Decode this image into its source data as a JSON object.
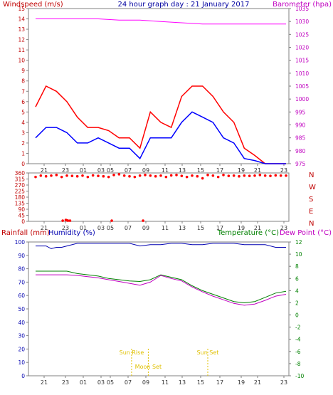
{
  "header": {
    "title": "24 hour graph day : 21 January 2017",
    "left_label": "Windspeed (m/s)",
    "right_label": "Barometer (hpa)"
  },
  "colors": {
    "frame": "#808080",
    "grid": "#e0e0e0",
    "wind": "#ff0000",
    "gust": "#0000ff",
    "baro": "#ff00ff",
    "direction": "#ff0000",
    "humidity": "#0000b0",
    "temperature": "#008000",
    "dewpoint": "#c000c0",
    "astro": "#e0c000",
    "rain_label": "#c00000",
    "humidity_label": "#0000b0",
    "temp_label": "#008000",
    "dew_label": "#c000c0"
  },
  "chart_data": [
    {
      "id": "wind_baro",
      "type": "line",
      "xlabel": "",
      "x_ticks": [
        "21",
        "23",
        "01",
        "03",
        "05",
        "07",
        "09",
        "11",
        "13",
        "15",
        "17",
        "19",
        "21",
        "23"
      ],
      "y_left": {
        "label": "Windspeed (m/s)",
        "range": [
          0,
          15
        ],
        "ticks": [
          0,
          1,
          2,
          3,
          4,
          5,
          6,
          7,
          8,
          9,
          10,
          11,
          12,
          13,
          14,
          15
        ]
      },
      "y_right": {
        "label": "Barometer (hpa)",
        "range": [
          975,
          1035
        ],
        "ticks": [
          975,
          980,
          985,
          990,
          995,
          1000,
          1005,
          1010,
          1015,
          1020,
          1025,
          1030,
          1035
        ]
      },
      "series": [
        {
          "color": "#ff0000",
          "x": [
            0,
            1,
            2,
            3,
            4,
            5,
            6,
            7,
            8,
            9,
            10,
            11,
            12,
            13,
            14,
            15,
            16,
            17,
            18,
            19,
            20,
            21,
            22,
            23,
            24
          ],
          "y": [
            5.5,
            7.5,
            7.0,
            6.0,
            4.5,
            3.5,
            3.5,
            3.2,
            2.5,
            2.5,
            1.5,
            5.0,
            4.0,
            3.5,
            6.5,
            7.5,
            7.5,
            6.5,
            5.0,
            4.0,
            1.5,
            0.8,
            0,
            0,
            0
          ]
        },
        {
          "color": "#0000ff",
          "x": [
            0,
            1,
            2,
            3,
            4,
            5,
            6,
            7,
            8,
            9,
            10,
            11,
            12,
            13,
            14,
            15,
            16,
            17,
            18,
            19,
            20,
            21,
            22,
            23,
            24
          ],
          "y": [
            2.5,
            3.5,
            3.5,
            3.0,
            2.0,
            2.0,
            2.5,
            2.0,
            1.5,
            1.5,
            0.5,
            2.5,
            2.5,
            2.5,
            4.0,
            5.0,
            4.5,
            4.0,
            2.5,
            2.0,
            0.5,
            0.3,
            0,
            0,
            0
          ]
        },
        {
          "color": "#ff00ff",
          "x": [
            0,
            2,
            4,
            6,
            8,
            10,
            12,
            14,
            16,
            18,
            20,
            22,
            24
          ],
          "y": [
            1031,
            1031,
            1031,
            1031,
            1030.5,
            1030.5,
            1030,
            1029.5,
            1029,
            1029,
            1029,
            1029,
            1029
          ]
        }
      ]
    },
    {
      "id": "wind_direction",
      "type": "scatter",
      "x_ticks": [
        "21",
        "23",
        "01",
        "03",
        "05",
        "07",
        "09",
        "11",
        "13",
        "15",
        "17",
        "19",
        "21",
        "23"
      ],
      "y_left": {
        "range": [
          0,
          360
        ],
        "ticks": [
          0,
          45,
          90,
          135,
          180,
          225,
          270,
          315,
          360
        ]
      },
      "y_right_labels": [
        "N",
        "W",
        "S",
        "E",
        "N"
      ],
      "series": [
        {
          "color": "#ff0000",
          "x": [
            0.0,
            0.5,
            1.0,
            1.5,
            2.0,
            2.5,
            3.0,
            3.5,
            4.0,
            4.5,
            5.0,
            5.5,
            6.0,
            6.5,
            7.0,
            7.5,
            8.0,
            8.5,
            9.0,
            9.5,
            10.0,
            10.5,
            11.0,
            11.5,
            12.0,
            12.5,
            13.0,
            13.5,
            14.0,
            14.5,
            15.0,
            15.5,
            16.0,
            16.5,
            17.0,
            17.5,
            18.0,
            18.5,
            19.0,
            19.5,
            20.0,
            20.5,
            21.0,
            21.5,
            22.0,
            22.5,
            23.0,
            23.5,
            24.0
          ],
          "y": [
            330,
            340,
            335,
            340,
            345,
            330,
            340,
            338,
            335,
            340,
            330,
            342,
            338,
            335,
            330,
            345,
            350,
            340,
            335,
            330,
            340,
            345,
            340,
            335,
            340,
            330,
            342,
            345,
            338,
            330,
            340,
            335,
            320,
            345,
            340,
            330,
            345,
            338,
            340,
            335,
            340,
            338,
            340,
            345,
            340,
            338,
            342,
            340,
            340
          ]
        },
        {
          "color": "#ff0000",
          "x": [
            2.6,
            2.9,
            3.0,
            3.1,
            3.3,
            7.3,
            10.3
          ],
          "y": [
            5,
            10,
            8,
            5,
            5,
            5,
            5
          ]
        }
      ]
    },
    {
      "id": "rain_humidity_temp",
      "type": "line",
      "x_ticks": [
        "21",
        "23",
        "01",
        "03",
        "05",
        "07",
        "09",
        "11",
        "13",
        "15",
        "17",
        "19",
        "21",
        "23"
      ],
      "y_left": {
        "label": "Rainfall (mm)  Humidity (%)",
        "range": [
          0,
          100
        ],
        "ticks": [
          0,
          10,
          20,
          30,
          40,
          50,
          60,
          70,
          80,
          90,
          100
        ]
      },
      "y_right": {
        "label": "Temperature (°C)",
        "range": [
          -10,
          12
        ],
        "ticks": [
          -10,
          -8,
          -6,
          -4,
          -2,
          0,
          2,
          4,
          6,
          8,
          10,
          12
        ]
      },
      "series": [
        {
          "color": "#0000b0",
          "x": [
            0,
            1,
            1.5,
            2,
            2.5,
            3,
            4,
            5,
            6,
            7,
            8,
            9,
            10,
            11,
            12,
            13,
            14,
            15,
            16,
            17,
            18,
            19,
            20,
            21,
            22,
            23,
            24
          ],
          "y": [
            97,
            97,
            95,
            96,
            96,
            97,
            99,
            99,
            99,
            99,
            99,
            99,
            97,
            98,
            98,
            99,
            99,
            98,
            98,
            99,
            99,
            99,
            98,
            98,
            98,
            96,
            96
          ]
        },
        {
          "color": "#008000",
          "x": [
            0,
            1,
            2,
            3,
            4,
            5,
            6,
            7,
            8,
            9,
            10,
            11,
            12,
            13,
            14,
            15,
            16,
            17,
            18,
            19,
            20,
            21,
            22,
            23,
            24
          ],
          "y": [
            7.2,
            7.2,
            7.2,
            7.2,
            6.8,
            6.6,
            6.4,
            6.0,
            5.8,
            5.6,
            5.5,
            5.8,
            6.6,
            6.2,
            5.8,
            4.8,
            4.0,
            3.4,
            2.8,
            2.2,
            2.0,
            2.2,
            2.9,
            3.6,
            3.9
          ]
        },
        {
          "color": "#c000c0",
          "x": [
            0,
            1,
            2,
            3,
            4,
            5,
            6,
            7,
            8,
            9,
            10,
            11,
            12,
            13,
            14,
            15,
            16,
            17,
            18,
            19,
            20,
            21,
            22,
            23,
            24
          ],
          "y": [
            6.6,
            6.6,
            6.6,
            6.6,
            6.5,
            6.3,
            6.1,
            5.8,
            5.5,
            5.2,
            4.9,
            5.4,
            6.5,
            6.0,
            5.6,
            4.6,
            3.8,
            3.1,
            2.5,
            1.9,
            1.6,
            1.8,
            2.4,
            3.1,
            3.4
          ]
        }
      ],
      "annotations": [
        {
          "text": "Sun Rise",
          "x": 9.2
        },
        {
          "text": "Moon Set",
          "x": 10.8
        },
        {
          "text": "Sun Set",
          "x": 16.5
        }
      ]
    }
  ],
  "bottom_labels": {
    "rainfall": "Rainfall (mm)",
    "humidity": "Humidity (%)",
    "temperature": "Temperature (°C)",
    "dewpoint": "Dew Point (°C)"
  }
}
